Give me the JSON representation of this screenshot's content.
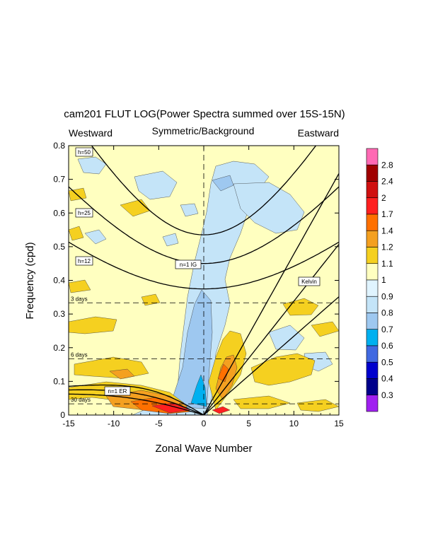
{
  "chart_data": {
    "type": "heatmap",
    "title": "cam201 FLUT LOG(Power Spectra summed over 15S-15N)",
    "subtitle_left": "Westward",
    "subtitle_center": "Symmetric/Background",
    "subtitle_right": "Eastward",
    "xlabel": "Zonal Wave Number",
    "ylabel": "Frequency (cpd)",
    "xlim": [
      -15,
      15
    ],
    "ylim": [
      0,
      0.8
    ],
    "xticks": [
      "-15",
      "-10",
      "-5",
      "0",
      "5",
      "10",
      "15"
    ],
    "yticks": [
      "0",
      "0.1",
      "0.2",
      "0.3",
      "0.4",
      "0.5",
      "0.6",
      "0.7",
      "0.8"
    ],
    "period_lines": [
      {
        "label": "3 days",
        "frequency": 0.3333
      },
      {
        "label": "6 days",
        "frequency": 0.1667
      },
      {
        "label": "30 days",
        "frequency": 0.0333
      }
    ],
    "curve_labels": [
      "h=50",
      "h=25",
      "h=12",
      "n=1 IG",
      "Kelvin",
      "n=1 ER"
    ],
    "colorbar": {
      "levels": [
        "0.3",
        "0.4",
        "0.5",
        "0.6",
        "0.7",
        "0.8",
        "0.9",
        "1",
        "1.1",
        "1.2",
        "1.4",
        "1.7",
        "2",
        "2.4",
        "2.8"
      ],
      "colors": [
        "#a020f0",
        "#00008b",
        "#0000cd",
        "#4169e1",
        "#00b0f0",
        "#9ec8f0",
        "#c4e4f8",
        "#e0f4ff",
        "#ffffc0",
        "#f5d020",
        "#f4a020",
        "#ff7000",
        "#ff2020",
        "#d01010",
        "#a00000",
        "#ff69b4"
      ]
    },
    "grid": false
  }
}
